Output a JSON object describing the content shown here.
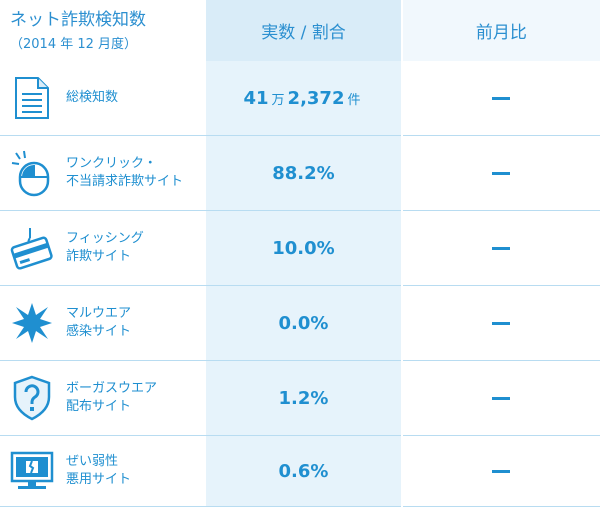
{
  "header": {
    "title": "ネット詐欺検知数",
    "subtitle": "（2014 年 12 月度）",
    "col_value": "実数 / 割合",
    "col_change": "前月比"
  },
  "rows": [
    {
      "label1": "総検知数",
      "label2": "",
      "value_main1": "41",
      "unit1": "万",
      "value_main2": "2,372",
      "unit2": "件",
      "change": "ー",
      "icon": "document-icon"
    },
    {
      "label1": "ワンクリック・",
      "label2": "不当請求詐欺サイト",
      "value": "88.2%",
      "change": "ー",
      "icon": "mouse-click-icon"
    },
    {
      "label1": "フィッシング",
      "label2": "詐欺サイト",
      "value": "10.0%",
      "change": "ー",
      "icon": "fishing-card-icon"
    },
    {
      "label1": "マルウエア",
      "label2": "感染サイト",
      "value": "0.0%",
      "change": "ー",
      "icon": "malware-burst-icon"
    },
    {
      "label1": "ボーガスウエア",
      "label2": "配布サイト",
      "value": "1.2%",
      "change": "ー",
      "icon": "shield-question-icon"
    },
    {
      "label1": "ぜい弱性",
      "label2": "悪用サイト",
      "value": "0.6%",
      "change": "ー",
      "icon": "broken-monitor-icon"
    }
  ],
  "colors": {
    "accent": "#1f8fd0",
    "col_value_bg": "#e6f3fb",
    "header_value_bg": "#d9ecf8"
  }
}
